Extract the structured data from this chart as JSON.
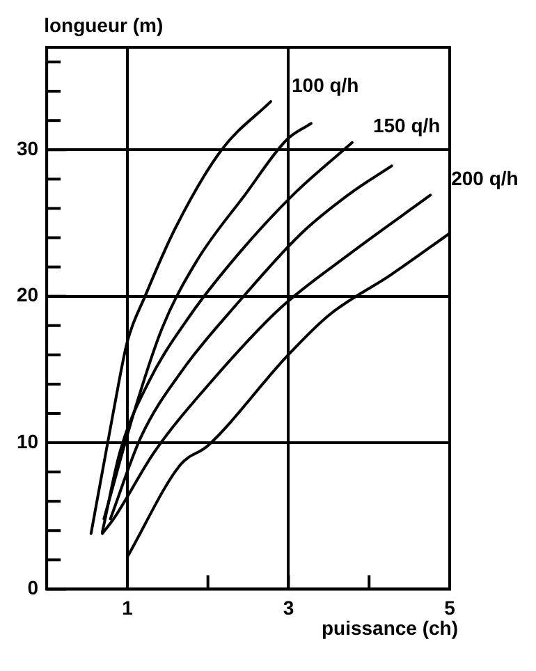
{
  "chart_data": {
    "type": "line",
    "xlabel": "puissance (ch)",
    "ylabel": "longueur (m)",
    "xlim": [
      0,
      5
    ],
    "xticks": [
      {
        "value": 1,
        "label": "1"
      },
      {
        "value": 2,
        "label": null
      },
      {
        "value": 3,
        "label": "3"
      },
      {
        "value": 4,
        "label": null
      },
      {
        "value": 5,
        "label": "5"
      }
    ],
    "ylim": [
      0,
      37
    ],
    "yticks": [
      0,
      {
        "value": 2,
        "label": null
      },
      {
        "value": 4,
        "label": null
      },
      {
        "value": 6,
        "label": null
      },
      {
        "value": 8,
        "label": null
      },
      10,
      {
        "value": 12,
        "label": null
      },
      {
        "value": 14,
        "label": null
      },
      {
        "value": 16,
        "label": null
      },
      {
        "value": 18,
        "label": null
      },
      20,
      {
        "value": 22,
        "label": null
      },
      {
        "value": 24,
        "label": null
      },
      {
        "value": 26,
        "label": null
      },
      {
        "value": 28,
        "label": null
      },
      30,
      {
        "value": 32,
        "label": null
      },
      {
        "value": 34,
        "label": null
      },
      {
        "value": 36,
        "label": null
      }
    ],
    "grid": true,
    "legend": false,
    "marker": "none",
    "line_style": "solid",
    "series": [
      {
        "name": "100 q/h",
        "color": "#000000",
        "x": [
          0.55,
          0.83,
          1.0,
          1.22,
          1.6,
          2.17,
          2.78
        ],
        "values": [
          3.8,
          12.2,
          16.9,
          20,
          24.7,
          30,
          33.3
        ]
      },
      {
        "color": "#000000",
        "x": [
          0.71,
          1.09,
          1.43,
          1.86,
          2.47,
          2.98,
          3.28
        ],
        "values": [
          4.8,
          12.2,
          17.8,
          22.4,
          27,
          30.7,
          31.8
        ]
      },
      {
        "name": "150 q/h",
        "color": "#000000",
        "x": [
          0.69,
          0.91,
          1.26,
          1.78,
          2.38,
          3.07,
          3.79
        ],
        "values": [
          3.9,
          9.4,
          14.1,
          18.7,
          22.9,
          27,
          30.5
        ]
      },
      {
        "color": "#000000",
        "x": [
          0.79,
          1.17,
          1.69,
          2.38,
          3.16,
          3.76,
          4.28
        ],
        "values": [
          4.8,
          10.4,
          15,
          19.6,
          24.3,
          27,
          28.9
        ]
      },
      {
        "name": "200 q/h",
        "color": "#000000",
        "x": [
          0.69,
          0.83,
          1.34,
          2.03,
          2.9,
          3.76,
          4.76
        ],
        "values": [
          3.8,
          4.8,
          9.4,
          14.1,
          19.2,
          22.9,
          26.9
        ]
      },
      {
        "color": "#000000",
        "x": [
          1,
          1.66,
          2.0,
          2.98,
          3.5,
          4.28,
          5.0
        ],
        "values": [
          2.2,
          8.5,
          9.8,
          15.9,
          18.7,
          21.5,
          24.3
        ]
      }
    ]
  }
}
